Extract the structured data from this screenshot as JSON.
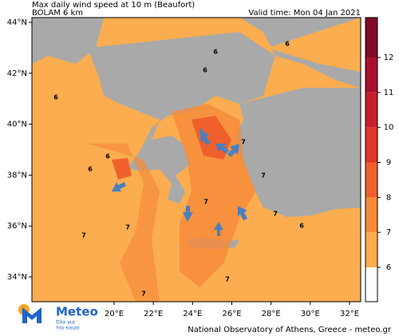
{
  "header": {
    "title": "Max daily wind speed at 10 m (Beaufort)",
    "model": "BOLAM 6 km",
    "valid_time": "Valid time: Mon 04 Jan 2021"
  },
  "map": {
    "lat_ticks": [
      {
        "value": 44,
        "label": "44°N"
      },
      {
        "value": 42,
        "label": "42°N"
      },
      {
        "value": 40,
        "label": "40°N"
      },
      {
        "value": 38,
        "label": "38°N"
      },
      {
        "value": 36,
        "label": "36°N"
      },
      {
        "value": 34,
        "label": "34°N"
      }
    ],
    "lon_ticks": [
      {
        "value": 20,
        "label": "20°E"
      },
      {
        "value": 22,
        "label": "22°E"
      },
      {
        "value": 24,
        "label": "24°E"
      },
      {
        "value": 26,
        "label": "26°E"
      },
      {
        "value": 28,
        "label": "28°E"
      },
      {
        "value": 30,
        "label": "30°E"
      },
      {
        "value": 32,
        "label": "32°E"
      }
    ],
    "contour_labels": [
      6,
      6,
      6,
      6,
      6,
      7,
      7,
      7,
      7,
      7,
      7,
      7,
      7,
      6,
      6
    ]
  },
  "colorbar": {
    "ticks": [
      6,
      7,
      8,
      9,
      10,
      11,
      12
    ],
    "colors": [
      "#fbad4f",
      "#f68a3a",
      "#ef602c",
      "#e0352a",
      "#c8202b",
      "#a8112d",
      "#80092a"
    ]
  },
  "footer": {
    "credit": "National Observatory of Athens, Greece - meteo.gr"
  },
  "logo": {
    "name": "Meteo",
    "tagline": [
      "Όλα για",
      "τον καιρό"
    ]
  }
}
